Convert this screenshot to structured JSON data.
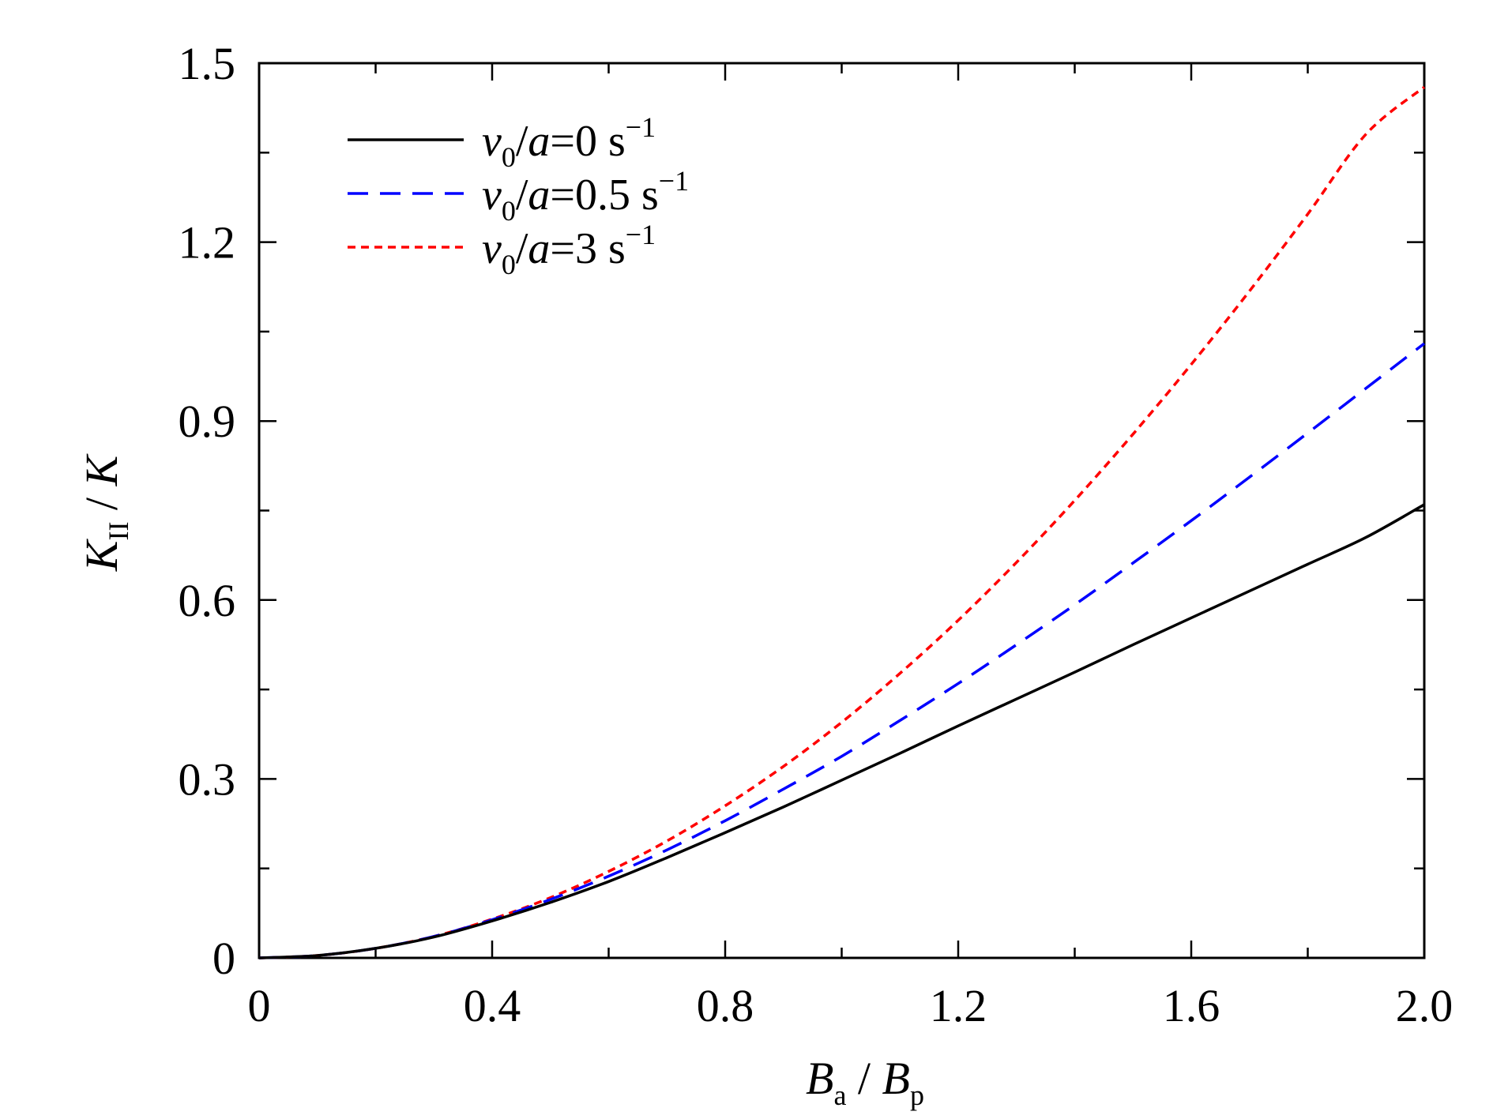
{
  "chart_data": {
    "type": "line",
    "xlim": [
      0,
      2.0
    ],
    "ylim": [
      0,
      1.5
    ],
    "x_ticks": [
      "0",
      "0.4",
      "0.8",
      "1.2",
      "1.6",
      "2.0"
    ],
    "x_tick_values": [
      0,
      0.4,
      0.8,
      1.2,
      1.6,
      2.0
    ],
    "x_minor_ticks": [
      0.2,
      0.6,
      1.0,
      1.4,
      1.8
    ],
    "y_ticks": [
      "0",
      "0.3",
      "0.6",
      "0.9",
      "1.2",
      "1.5"
    ],
    "y_tick_values": [
      0,
      0.3,
      0.6,
      0.9,
      1.2,
      1.5
    ],
    "y_minor_ticks": [
      0.15,
      0.45,
      0.75,
      1.05,
      1.35
    ],
    "xlabel": {
      "main": "B",
      "sub1": "a",
      "slash": " / ",
      "main2": "B",
      "sub2": "p"
    },
    "ylabel": {
      "main": "K",
      "sub": "II",
      "slash": " / ",
      "main2": "K"
    },
    "grid": false,
    "legend_position": "top-left",
    "series": [
      {
        "name": "v0/a=0 s^-1",
        "legend": {
          "v": "v",
          "sub": "0",
          "rest": "/a=0 s",
          "sup": "−1"
        },
        "color": "#000000",
        "style": "solid",
        "x": [
          0,
          0.1,
          0.2,
          0.3,
          0.4,
          0.5,
          0.6,
          0.7,
          0.8,
          0.9,
          1.0,
          1.1,
          1.2,
          1.3,
          1.4,
          1.5,
          1.6,
          1.7,
          1.8,
          1.9,
          2.0
        ],
        "y": [
          0,
          0.004,
          0.016,
          0.035,
          0.062,
          0.093,
          0.128,
          0.168,
          0.21,
          0.253,
          0.298,
          0.343,
          0.389,
          0.434,
          0.479,
          0.525,
          0.57,
          0.615,
          0.66,
          0.705,
          0.76
        ]
      },
      {
        "name": "v0/a=0.5 s^-1",
        "legend": {
          "v": "v",
          "sub": "0",
          "rest": "/a=0.5 s",
          "sup": "−1"
        },
        "color": "#0000ff",
        "style": "dashed",
        "x": [
          0,
          0.1,
          0.2,
          0.3,
          0.4,
          0.5,
          0.6,
          0.7,
          0.8,
          0.9,
          1.0,
          1.1,
          1.2,
          1.3,
          1.4,
          1.5,
          1.6,
          1.7,
          1.8,
          1.9,
          2.0
        ],
        "y": [
          0,
          0.004,
          0.016,
          0.036,
          0.064,
          0.098,
          0.137,
          0.181,
          0.23,
          0.283,
          0.338,
          0.398,
          0.46,
          0.525,
          0.592,
          0.662,
          0.733,
          0.806,
          0.88,
          0.955,
          1.03
        ]
      },
      {
        "name": "v0/a=3 s^-1",
        "legend": {
          "v": "v",
          "sub": "0",
          "rest": "/a=3 s",
          "sup": "−1"
        },
        "color": "#ff0000",
        "style": "dotted",
        "x": [
          0,
          0.1,
          0.2,
          0.3,
          0.4,
          0.5,
          0.6,
          0.7,
          0.8,
          0.9,
          1.0,
          1.1,
          1.2,
          1.3,
          1.4,
          1.5,
          1.6,
          1.7,
          1.8,
          1.9,
          2.0
        ],
        "y": [
          0,
          0.004,
          0.016,
          0.036,
          0.065,
          0.101,
          0.145,
          0.196,
          0.255,
          0.321,
          0.395,
          0.477,
          0.566,
          0.663,
          0.767,
          0.878,
          0.995,
          1.118,
          1.247,
          1.381,
          1.46
        ]
      }
    ]
  }
}
